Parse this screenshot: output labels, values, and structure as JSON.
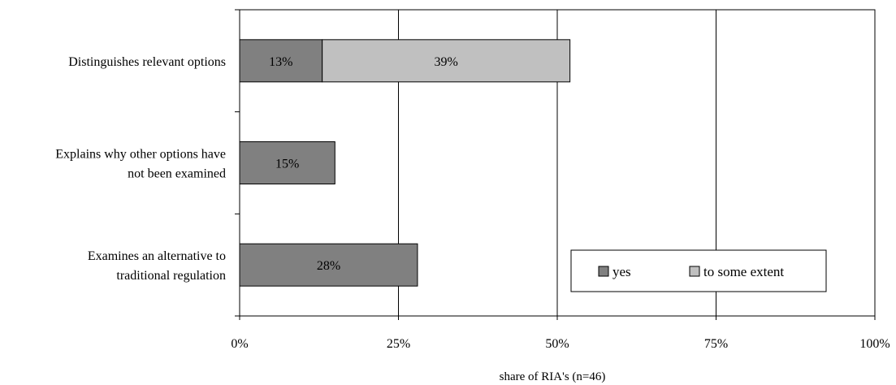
{
  "chart_data": {
    "type": "bar",
    "orientation": "horizontal",
    "stacked": true,
    "categories": [
      [
        "Distinguishes relevant options"
      ],
      [
        "Explains why other options have",
        "not been examined"
      ],
      [
        "Examines an alternative to",
        "traditional regulation"
      ]
    ],
    "series": [
      {
        "name": "yes",
        "values": [
          13,
          15,
          28
        ],
        "labels": [
          "13%",
          "15%",
          "28%"
        ],
        "color": "#808080"
      },
      {
        "name": "to some extent",
        "values": [
          39,
          0,
          0
        ],
        "labels": [
          "39%",
          "",
          ""
        ],
        "color": "#c0c0c0"
      }
    ],
    "xlim": [
      0,
      100
    ],
    "xticks": [
      0,
      25,
      50,
      75,
      100
    ],
    "xtick_labels": [
      "0%",
      "25%",
      "50%",
      "75%",
      "100%"
    ],
    "xlabel": "share of RIA's (n=46)",
    "grid": true,
    "legend_position": "bottom-right"
  }
}
